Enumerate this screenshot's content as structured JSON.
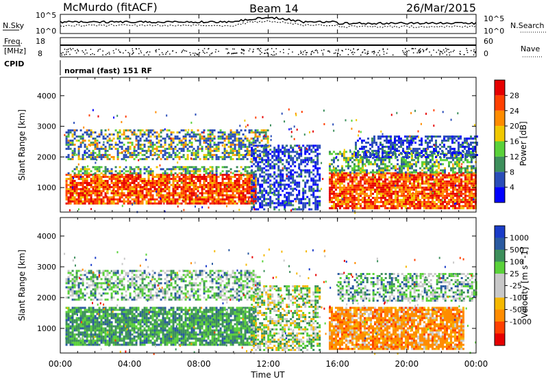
{
  "header": {
    "station": "McMurdo (fitACF)",
    "beam": "Beam 14",
    "date": "26/Mar/2015"
  },
  "noise_panel": {
    "left_label": "N.Sky",
    "right_label": "N.Search",
    "left_ticks": [
      "10^5",
      "10^0"
    ],
    "right_ticks": [
      "10^5",
      "10^0"
    ]
  },
  "freq_panel": {
    "left_label_top": "Freq.",
    "left_label_unit": "[MHz]",
    "left_ticks": [
      "18",
      "8"
    ],
    "right_label": "Nave",
    "right_ticks": [
      "60",
      "0"
    ],
    "cpid_label": "CPID",
    "mode_text": "normal (fast) 151 RF"
  },
  "x_axis": {
    "label": "Time UT",
    "ticks": [
      "00:00",
      "04:00",
      "08:00",
      "12:00",
      "16:00",
      "20:00",
      "00:00"
    ]
  },
  "colors": {
    "power": [
      "#0000ff",
      "#2a4db8",
      "#3d8f5c",
      "#5ad13a",
      "#f0c800",
      "#ff8c00",
      "#ff4000",
      "#e60000"
    ],
    "velocity": [
      "#e60000",
      "#ff4000",
      "#ff8c00",
      "#f5b800",
      "#c8c8c8",
      "#c8c8c8",
      "#5ad13a",
      "#3d8f5c",
      "#2a5aa0",
      "#1a3cc8"
    ]
  },
  "chart_data": [
    {
      "type": "heatmap",
      "title": "Power",
      "xlabel": "Time UT",
      "ylabel": "Slant Range [km]",
      "xlim": [
        0,
        24
      ],
      "ylim": [
        200,
        4600
      ],
      "yticks": [
        "1000",
        "2000",
        "3000",
        "4000"
      ],
      "colorbar": {
        "label": "Power [dB]",
        "ticks": [
          "4",
          "8",
          "12",
          "16",
          "20",
          "24",
          "28"
        ],
        "range": [
          0,
          32
        ]
      },
      "regions": [
        {
          "t": [
            0.3,
            11.3
          ],
          "r": [
            450,
            1450
          ],
          "level": "high (24-32 dB)"
        },
        {
          "t": [
            0.3,
            11.3
          ],
          "r": [
            1450,
            1700
          ],
          "level": "mid (12-20 dB)"
        },
        {
          "t": [
            0.3,
            12.0
          ],
          "r": [
            1900,
            2900
          ],
          "level": "low-mid (4-20 dB)"
        },
        {
          "t": [
            11.0,
            15.0
          ],
          "r": [
            300,
            2400
          ],
          "level": "low (0-8 dB)"
        },
        {
          "t": [
            15.5,
            24.0
          ],
          "r": [
            300,
            1500
          ],
          "level": "high (24-32 dB)"
        },
        {
          "t": [
            15.5,
            24.0
          ],
          "r": [
            1500,
            2200
          ],
          "level": "mid (8-20 dB)"
        },
        {
          "t": [
            17.0,
            24.0
          ],
          "r": [
            2000,
            2700
          ],
          "level": "low (4-12 dB)"
        }
      ]
    },
    {
      "type": "heatmap",
      "title": "Velocity",
      "xlabel": "Time UT",
      "ylabel": "Slant Range [km]",
      "xlim": [
        0,
        24
      ],
      "ylim": [
        200,
        4600
      ],
      "yticks": [
        "1000",
        "2000",
        "3000",
        "4000"
      ],
      "colorbar": {
        "label": "Velocity [m s^-1]",
        "ticks": [
          "1000",
          "500",
          "100",
          "25",
          "-25",
          "-100",
          "-500",
          "-1000"
        ]
      },
      "regions": [
        {
          "t": [
            0.3,
            11.3
          ],
          "r": [
            450,
            1700
          ],
          "level": "positive (100-500 m/s)"
        },
        {
          "t": [
            0.3,
            11.5
          ],
          "r": [
            1900,
            2900
          ],
          "level": "mixed (-25 to 500 m/s)"
        },
        {
          "t": [
            11.0,
            15.0
          ],
          "r": [
            300,
            2400
          ],
          "level": "near zero / positive"
        },
        {
          "t": [
            15.5,
            23.3
          ],
          "r": [
            300,
            1700
          ],
          "level": "negative (-100 to -500 m/s)"
        },
        {
          "t": [
            16.0,
            24.0
          ],
          "r": [
            1900,
            2800
          ],
          "level": "mixed (-25 to 100 m/s)"
        }
      ]
    }
  ]
}
